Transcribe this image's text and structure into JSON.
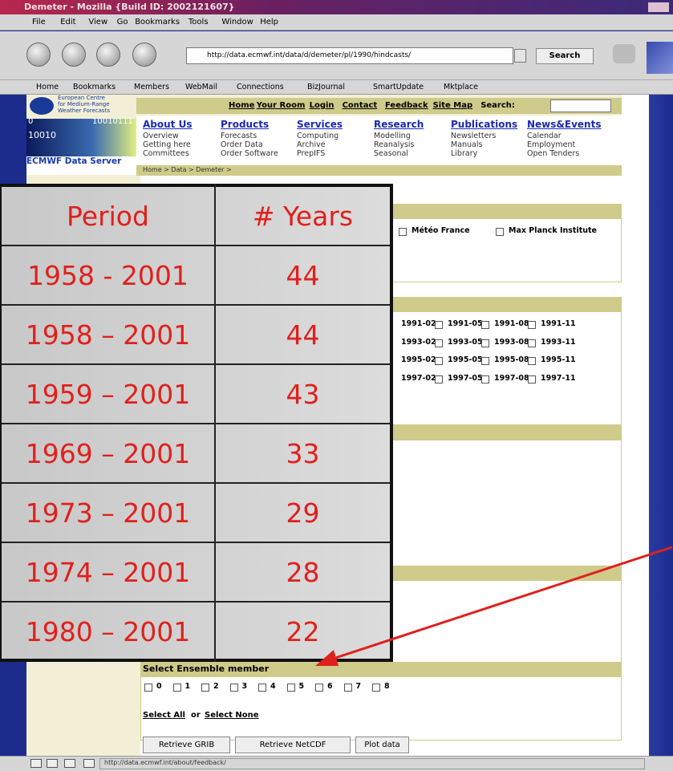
{
  "window": {
    "title": "Demeter - Mozilla {Build ID: 2002121607}"
  },
  "menu": [
    "File",
    "Edit",
    "View",
    "Go",
    "Bookmarks",
    "Tools",
    "Window",
    "Help"
  ],
  "toolbar": {
    "url": "http://data.ecmwf.int/data/d/demeter/pl/1990/hindcasts/",
    "search": "Search"
  },
  "bookmarks": [
    "Home",
    "Bookmarks",
    "Members",
    "WebMail",
    "Connections",
    "BizJournal",
    "SmartUpdate",
    "Mktplace"
  ],
  "site": {
    "logo_lines": [
      "European Centre",
      "for Medium-Range",
      "Weather Forecasts"
    ],
    "binary": [
      "0",
      "10010111",
      "10010"
    ],
    "server": "ECMWF Data Server",
    "top_links": [
      "Home",
      "Your Room",
      "Login",
      "Contact",
      "Feedback",
      "Site Map",
      "Search:"
    ],
    "menus": [
      {
        "title": "About Us",
        "items": [
          "Overview",
          "Getting here",
          "Committees"
        ]
      },
      {
        "title": "Products",
        "items": [
          "Forecasts",
          "Order Data",
          "Order Software"
        ]
      },
      {
        "title": "Services",
        "items": [
          "Computing",
          "Archive",
          "PrepIFS"
        ]
      },
      {
        "title": "Research",
        "items": [
          "Modelling",
          "Reanalysis",
          "Seasonal"
        ]
      },
      {
        "title": "Publications",
        "items": [
          "Newsletters",
          "Manuals",
          "Library"
        ]
      },
      {
        "title": "News&Events",
        "items": [
          "Calendar",
          "Employment",
          "Open Tenders"
        ]
      }
    ],
    "breadcrumb": "Home > Data > Demeter >"
  },
  "form": {
    "institutes": [
      "Météo France",
      "Max Planck Institute"
    ],
    "dates": [
      [
        "1991-02",
        "1991-05",
        "1991-08",
        "1991-11"
      ],
      [
        "1993-02",
        "1993-05",
        "1993-08",
        "1993-11"
      ],
      [
        "1995-02",
        "1995-05",
        "1995-08",
        "1995-11"
      ],
      [
        "1997-02",
        "1997-05",
        "1997-08",
        "1997-11"
      ]
    ],
    "ensemble": {
      "title": "Select Ensemble member",
      "members": [
        0,
        1,
        2,
        3,
        4,
        5,
        6,
        7,
        8
      ],
      "select_all": "Select All",
      "or": "or",
      "select_none": "Select None"
    },
    "buttons": [
      "Retrieve GRIB",
      "Retrieve NetCDF",
      "Plot data"
    ]
  },
  "status": {
    "url": "http://data.ecmwf.int/about/feedback/"
  },
  "table": {
    "header": [
      "Period",
      "# Years"
    ],
    "rows": [
      [
        "1958 - 2001",
        44
      ],
      [
        "1958 – 2001",
        44
      ],
      [
        "1959 – 2001",
        43
      ],
      [
        "1969 – 2001",
        33
      ],
      [
        "1973 – 2001",
        29
      ],
      [
        "1974 – 2001",
        28
      ],
      [
        "1980 – 2001",
        22
      ]
    ]
  }
}
